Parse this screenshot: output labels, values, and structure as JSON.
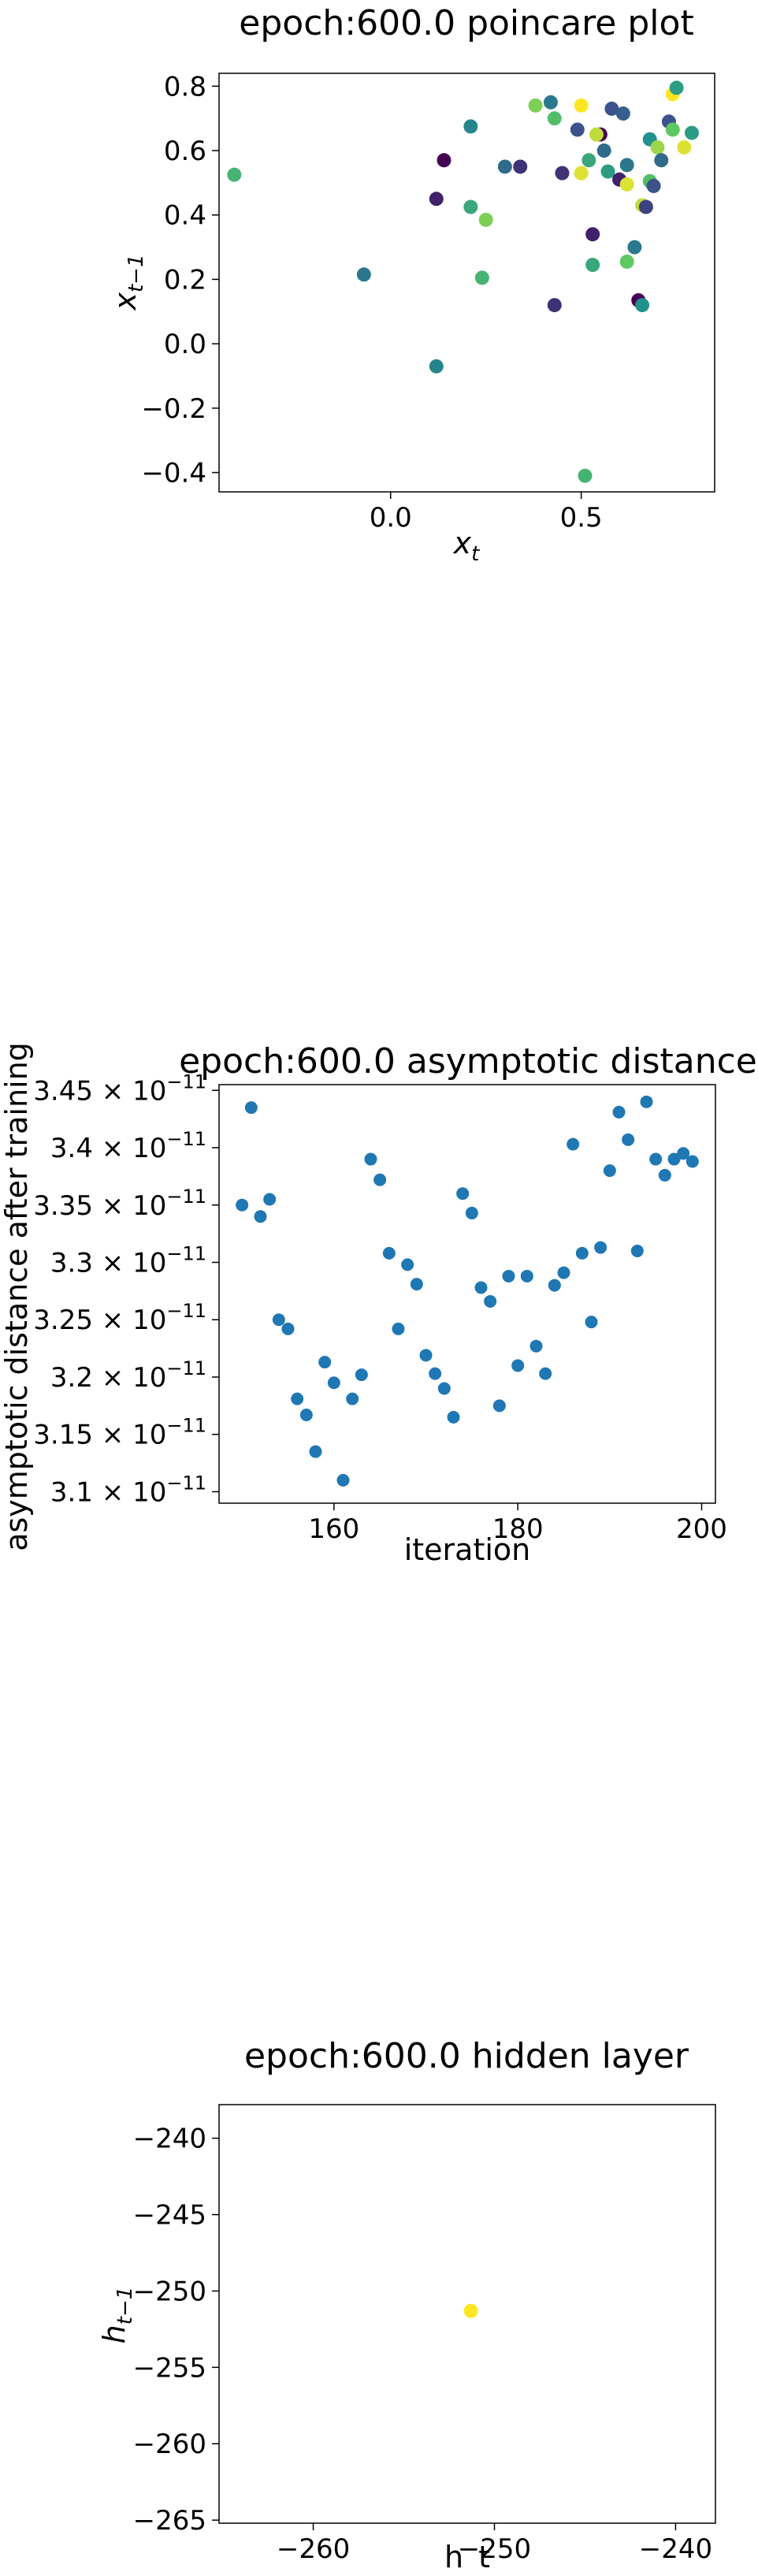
{
  "chart_data": [
    {
      "type": "scatter",
      "title": "epoch:600.0 poincare plot",
      "xlabel_main": "x",
      "xlabel_sub": "t",
      "ylabel_main": "x",
      "ylabel_sub": "t−1",
      "xlim": [
        -0.45,
        0.85
      ],
      "ylim": [
        -0.46,
        0.84
      ],
      "xticks": [
        {
          "v": 0.0,
          "label": "0.0"
        },
        {
          "v": 0.5,
          "label": "0.5"
        }
      ],
      "yticks": [
        {
          "v": -0.4,
          "label": "−0.4"
        },
        {
          "v": -0.2,
          "label": "−0.2"
        },
        {
          "v": 0.0,
          "label": "0.0"
        },
        {
          "v": 0.2,
          "label": "0.2"
        },
        {
          "v": 0.4,
          "label": "0.4"
        },
        {
          "v": 0.6,
          "label": "0.6"
        },
        {
          "v": 0.8,
          "label": "0.8"
        }
      ],
      "colormap": "viridis",
      "points": [
        {
          "x": -0.41,
          "y": 0.525,
          "c": 0.65
        },
        {
          "x": -0.07,
          "y": 0.215,
          "c": 0.4
        },
        {
          "x": 0.12,
          "y": -0.07,
          "c": 0.45
        },
        {
          "x": 0.12,
          "y": 0.45,
          "c": 0.1
        },
        {
          "x": 0.14,
          "y": 0.57,
          "c": 0.0
        },
        {
          "x": 0.21,
          "y": 0.675,
          "c": 0.45
        },
        {
          "x": 0.21,
          "y": 0.425,
          "c": 0.6
        },
        {
          "x": 0.25,
          "y": 0.385,
          "c": 0.8
        },
        {
          "x": 0.24,
          "y": 0.205,
          "c": 0.65
        },
        {
          "x": 0.3,
          "y": 0.55,
          "c": 0.35
        },
        {
          "x": 0.34,
          "y": 0.55,
          "c": 0.15
        },
        {
          "x": 0.38,
          "y": 0.74,
          "c": 0.8
        },
        {
          "x": 0.42,
          "y": 0.75,
          "c": 0.4
        },
        {
          "x": 0.43,
          "y": 0.7,
          "c": 0.7
        },
        {
          "x": 0.45,
          "y": 0.53,
          "c": 0.15
        },
        {
          "x": 0.43,
          "y": 0.12,
          "c": 0.15
        },
        {
          "x": 0.49,
          "y": 0.665,
          "c": 0.25
        },
        {
          "x": 0.5,
          "y": 0.74,
          "c": 1.0
        },
        {
          "x": 0.5,
          "y": 0.53,
          "c": 0.95
        },
        {
          "x": 0.51,
          "y": -0.41,
          "c": 0.65
        },
        {
          "x": 0.52,
          "y": 0.57,
          "c": 0.6
        },
        {
          "x": 0.53,
          "y": 0.34,
          "c": 0.1
        },
        {
          "x": 0.53,
          "y": 0.245,
          "c": 0.6
        },
        {
          "x": 0.55,
          "y": 0.65,
          "c": 0.0
        },
        {
          "x": 0.54,
          "y": 0.65,
          "c": 0.9
        },
        {
          "x": 0.56,
          "y": 0.6,
          "c": 0.35
        },
        {
          "x": 0.57,
          "y": 0.535,
          "c": 0.55
        },
        {
          "x": 0.58,
          "y": 0.73,
          "c": 0.25
        },
        {
          "x": 0.6,
          "y": 0.51,
          "c": 0.1
        },
        {
          "x": 0.61,
          "y": 0.715,
          "c": 0.3
        },
        {
          "x": 0.62,
          "y": 0.555,
          "c": 0.4
        },
        {
          "x": 0.62,
          "y": 0.495,
          "c": 0.95
        },
        {
          "x": 0.62,
          "y": 0.255,
          "c": 0.75
        },
        {
          "x": 0.64,
          "y": 0.3,
          "c": 0.4
        },
        {
          "x": 0.65,
          "y": 0.135,
          "c": 0.0
        },
        {
          "x": 0.66,
          "y": 0.12,
          "c": 0.5
        },
        {
          "x": 0.66,
          "y": 0.43,
          "c": 0.9
        },
        {
          "x": 0.67,
          "y": 0.425,
          "c": 0.2
        },
        {
          "x": 0.68,
          "y": 0.635,
          "c": 0.5
        },
        {
          "x": 0.68,
          "y": 0.505,
          "c": 0.7
        },
        {
          "x": 0.69,
          "y": 0.49,
          "c": 0.25
        },
        {
          "x": 0.7,
          "y": 0.61,
          "c": 0.85
        },
        {
          "x": 0.71,
          "y": 0.57,
          "c": 0.35
        },
        {
          "x": 0.73,
          "y": 0.69,
          "c": 0.25
        },
        {
          "x": 0.74,
          "y": 0.665,
          "c": 0.75
        },
        {
          "x": 0.74,
          "y": 0.775,
          "c": 1.0
        },
        {
          "x": 0.75,
          "y": 0.795,
          "c": 0.55
        },
        {
          "x": 0.77,
          "y": 0.61,
          "c": 0.95
        },
        {
          "x": 0.79,
          "y": 0.655,
          "c": 0.55
        }
      ]
    },
    {
      "type": "scatter",
      "title": "epoch:600.0 asymptotic distance",
      "xlabel": "iteration",
      "ylabel": "asymptotic distance after training",
      "xlim": [
        147.5,
        201.5
      ],
      "ylim": [
        3.09,
        3.455
      ],
      "y_scale_note": "values ×10⁻¹¹",
      "xticks": [
        {
          "v": 160,
          "label": "160"
        },
        {
          "v": 180,
          "label": "180"
        },
        {
          "v": 200,
          "label": "200"
        }
      ],
      "yticks": [
        {
          "v": 3.1,
          "mantissa": "3.1"
        },
        {
          "v": 3.15,
          "mantissa": "3.15"
        },
        {
          "v": 3.2,
          "mantissa": "3.2"
        },
        {
          "v": 3.25,
          "mantissa": "3.25"
        },
        {
          "v": 3.3,
          "mantissa": "3.3"
        },
        {
          "v": 3.35,
          "mantissa": "3.35"
        },
        {
          "v": 3.4,
          "mantissa": "3.4"
        },
        {
          "v": 3.45,
          "mantissa": "3.45"
        }
      ],
      "ytick_base": "10",
      "ytick_exp": "−11",
      "color": "#1f77b4",
      "points": [
        {
          "x": 150,
          "y": 3.35
        },
        {
          "x": 151,
          "y": 3.435
        },
        {
          "x": 152,
          "y": 3.34
        },
        {
          "x": 153,
          "y": 3.355
        },
        {
          "x": 154,
          "y": 3.25
        },
        {
          "x": 155,
          "y": 3.242
        },
        {
          "x": 156,
          "y": 3.181
        },
        {
          "x": 157,
          "y": 3.167
        },
        {
          "x": 158,
          "y": 3.135
        },
        {
          "x": 159,
          "y": 3.213
        },
        {
          "x": 160,
          "y": 3.195
        },
        {
          "x": 161,
          "y": 3.11
        },
        {
          "x": 162,
          "y": 3.181
        },
        {
          "x": 163,
          "y": 3.202
        },
        {
          "x": 164,
          "y": 3.39
        },
        {
          "x": 165,
          "y": 3.372
        },
        {
          "x": 166,
          "y": 3.308
        },
        {
          "x": 167,
          "y": 3.242
        },
        {
          "x": 168,
          "y": 3.298
        },
        {
          "x": 169,
          "y": 3.281
        },
        {
          "x": 170,
          "y": 3.219
        },
        {
          "x": 171,
          "y": 3.203
        },
        {
          "x": 172,
          "y": 3.19
        },
        {
          "x": 173,
          "y": 3.165
        },
        {
          "x": 174,
          "y": 3.36
        },
        {
          "x": 175,
          "y": 3.343
        },
        {
          "x": 176,
          "y": 3.278
        },
        {
          "x": 177,
          "y": 3.266
        },
        {
          "x": 178,
          "y": 3.175
        },
        {
          "x": 179,
          "y": 3.288
        },
        {
          "x": 180,
          "y": 3.21
        },
        {
          "x": 181,
          "y": 3.288
        },
        {
          "x": 182,
          "y": 3.227
        },
        {
          "x": 183,
          "y": 3.203
        },
        {
          "x": 184,
          "y": 3.28
        },
        {
          "x": 185,
          "y": 3.291
        },
        {
          "x": 186,
          "y": 3.403
        },
        {
          "x": 187,
          "y": 3.308
        },
        {
          "x": 188,
          "y": 3.248
        },
        {
          "x": 189,
          "y": 3.313
        },
        {
          "x": 190,
          "y": 3.38
        },
        {
          "x": 191,
          "y": 3.431
        },
        {
          "x": 192,
          "y": 3.407
        },
        {
          "x": 193,
          "y": 3.31
        },
        {
          "x": 194,
          "y": 3.44
        },
        {
          "x": 195,
          "y": 3.39
        },
        {
          "x": 196,
          "y": 3.376
        },
        {
          "x": 197,
          "y": 3.39
        },
        {
          "x": 198,
          "y": 3.395
        },
        {
          "x": 199,
          "y": 3.388
        }
      ]
    },
    {
      "type": "scatter",
      "title": "epoch:600.0 hidden layer",
      "xlabel": "h_t",
      "ylabel_main": "h",
      "ylabel_sub": "t−1",
      "xlim": [
        -265.2,
        -237.8
      ],
      "ylim": [
        -265.2,
        -237.8
      ],
      "xticks": [
        {
          "v": -260,
          "label": "−260"
        },
        {
          "v": -250,
          "label": "−250"
        },
        {
          "v": -240,
          "label": "−240"
        }
      ],
      "yticks": [
        {
          "v": -265,
          "label": "−265"
        },
        {
          "v": -260,
          "label": "−260"
        },
        {
          "v": -255,
          "label": "−255"
        },
        {
          "v": -250,
          "label": "−250"
        },
        {
          "v": -245,
          "label": "−245"
        },
        {
          "v": -240,
          "label": "−240"
        }
      ],
      "color": "#fde725",
      "points": [
        {
          "x": -251.3,
          "y": -251.3
        }
      ]
    }
  ]
}
